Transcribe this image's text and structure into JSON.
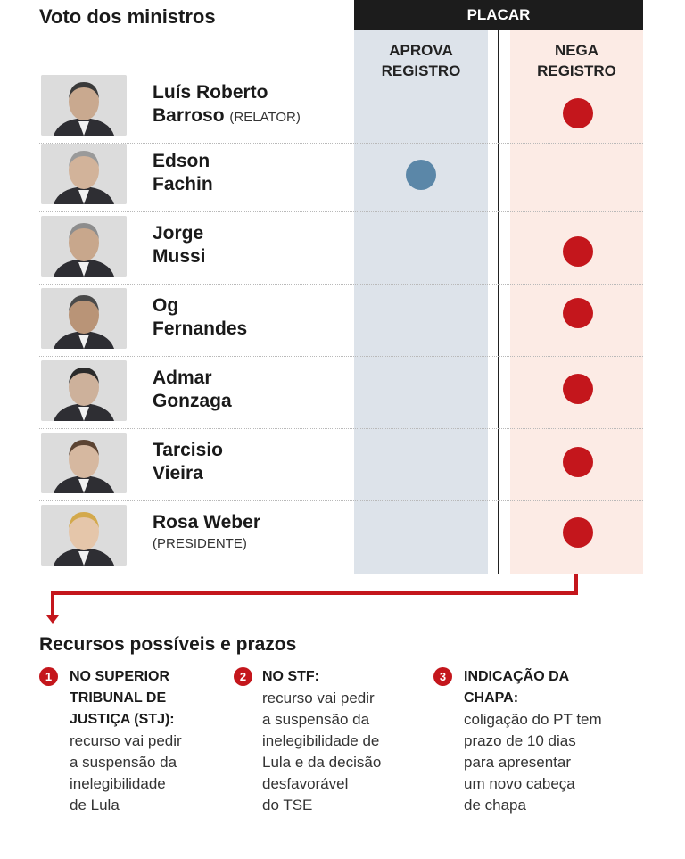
{
  "header": {
    "title": "Voto dos ministros",
    "placar": "PLACAR"
  },
  "columns": {
    "aprova": "APROVA\nREGISTRO",
    "nega": "NEGA\nREGISTRO"
  },
  "colors": {
    "nega": "#c4161c",
    "aprova": "#5b87a8",
    "accent": "#c4161c"
  },
  "ministers": [
    {
      "line1": "Luís Roberto",
      "line2": "Barroso",
      "role": "(RELATOR)",
      "vote": "nega"
    },
    {
      "line1": "Edson",
      "line2": "Fachin",
      "role": "",
      "vote": "aprova"
    },
    {
      "line1": "Jorge",
      "line2": "Mussi",
      "role": "",
      "vote": "nega"
    },
    {
      "line1": "Og",
      "line2": "Fernandes",
      "role": "",
      "vote": "nega"
    },
    {
      "line1": "Admar",
      "line2": "Gonzaga",
      "role": "",
      "vote": "nega"
    },
    {
      "line1": "Tarcisio",
      "line2": "Vieira",
      "role": "",
      "vote": "nega"
    },
    {
      "line1": "Rosa Weber",
      "line2": "",
      "role": "(PRESIDENTE)",
      "vote": "nega"
    }
  ],
  "recursos": {
    "title": "Recursos possíveis e prazos",
    "items": [
      {
        "num": "1",
        "head": "NO SUPERIOR\nTRIBUNAL DE\nJUSTIÇA (STJ):",
        "body": "recurso vai pedir\na suspensão da\ninelegibilidade\nde Lula"
      },
      {
        "num": "2",
        "head": "NO STF:",
        "body": "recurso vai pedir\na suspensão da\ninelegibilidade de\nLula e da decisão\ndesfavorável\ndo TSE"
      },
      {
        "num": "3",
        "head": "INDICAÇÃO DA\nCHAPA:",
        "body": "coligação do PT tem\nprazo de 10 dias\npara apresentar\num novo cabeça\nde chapa"
      }
    ]
  }
}
